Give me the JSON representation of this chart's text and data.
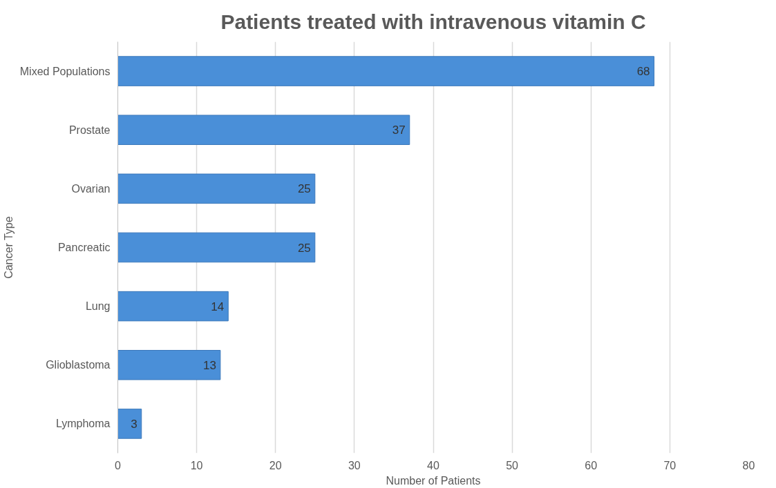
{
  "chart_data": {
    "type": "bar",
    "orientation": "horizontal",
    "title": "Patients treated with intravenous vitamin C",
    "xlabel": "Number of Patients",
    "ylabel": "Cancer Type",
    "categories": [
      "Mixed Populations",
      "Prostate",
      "Ovarian",
      "Pancreatic",
      "Lung",
      "Glioblastoma",
      "Lymphoma"
    ],
    "values": [
      68,
      37,
      25,
      25,
      14,
      13,
      3
    ],
    "color": "#4a8fd8",
    "xlim": [
      0,
      80
    ],
    "xticks": [
      0,
      10,
      20,
      30,
      40,
      50,
      60,
      70,
      80
    ],
    "grid": "x",
    "data_labels": true
  }
}
